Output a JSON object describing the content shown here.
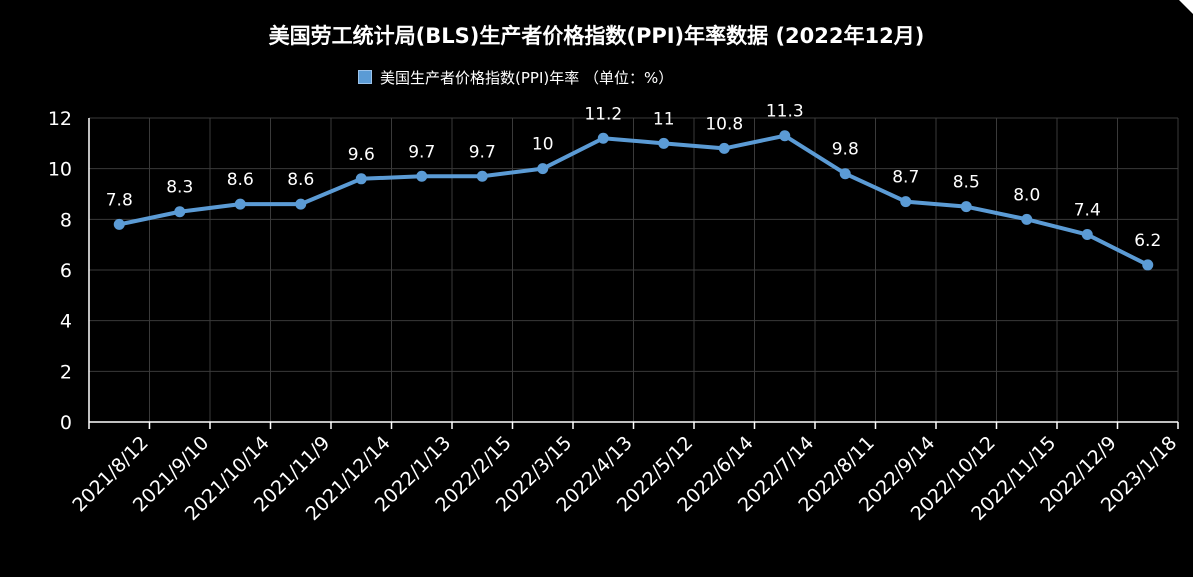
{
  "title": "美国劳工统计局(BLS)生产者价格指数(PPI)年率数据 (2022年12月)",
  "colors": {
    "background": "#000000",
    "line": "#5b9bd5",
    "grid": "#3a3a3a",
    "axis": "#ffffff",
    "text": "#ffffff"
  },
  "chart_data": {
    "type": "line",
    "title": "美国劳工统计局(BLS)生产者价格指数(PPI)年率数据 (2022年12月)",
    "xlabel": "",
    "ylabel": "",
    "ylim": [
      0,
      12
    ],
    "yticks": [
      "0",
      "2",
      "4",
      "6",
      "8",
      "10",
      "12"
    ],
    "grid": true,
    "legend_position": "top",
    "categories": [
      "2021/8/12",
      "2021/9/10",
      "2021/10/14",
      "2021/11/9",
      "2021/12/14",
      "2022/1/13",
      "2022/2/15",
      "2022/3/15",
      "2022/4/13",
      "2022/5/12",
      "2022/6/14",
      "2022/7/14",
      "2022/8/11",
      "2022/9/14",
      "2022/10/12",
      "2022/11/15",
      "2022/12/9",
      "2023/1/18"
    ],
    "series": [
      {
        "name": "美国生产者价格指数(PPI)年率 （单位：%）",
        "values": [
          7.8,
          8.3,
          8.6,
          8.6,
          9.6,
          9.7,
          9.7,
          10,
          11.2,
          11,
          10.8,
          11.3,
          9.8,
          8.7,
          8.5,
          8.0,
          7.4,
          6.2
        ],
        "labels": [
          "7.8",
          "8.3",
          "8.6",
          "8.6",
          "9.6",
          "9.7",
          "9.7",
          "10",
          "11.2",
          "11",
          "10.8",
          "11.3",
          "9.8",
          "8.7",
          "8.5",
          "8.0",
          "7.4",
          "6.2"
        ]
      }
    ]
  }
}
